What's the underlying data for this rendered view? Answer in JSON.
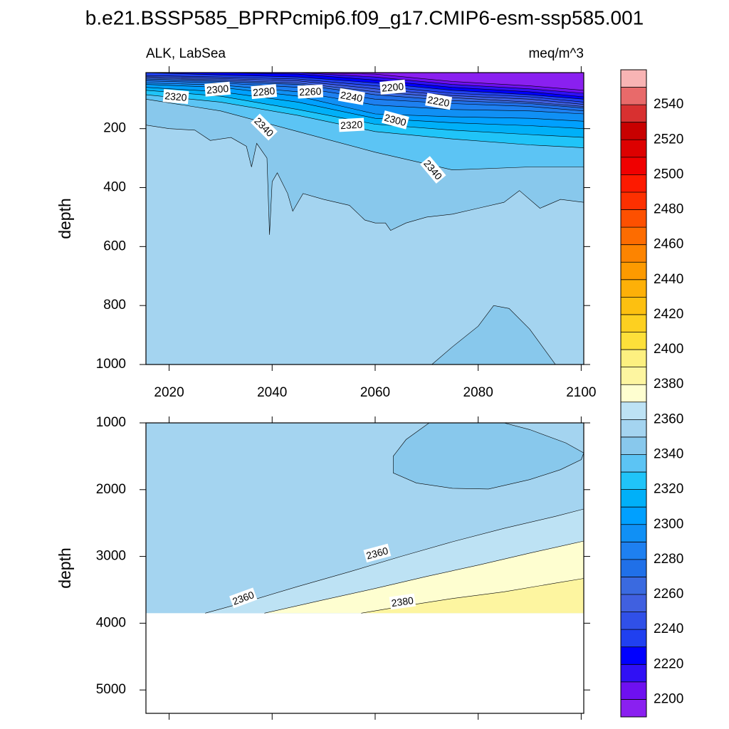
{
  "title": "b.e21.BSSP585_BPRPcmip6.f09_g17.CMIP6-esm-ssp585.001",
  "colorbar": {
    "lim": [
      2190,
      2560
    ],
    "levels": [
      2200,
      2210,
      2220,
      2230,
      2240,
      2250,
      2260,
      2270,
      2280,
      2290,
      2300,
      2310,
      2320,
      2330,
      2340,
      2350,
      2360,
      2370,
      2380,
      2390,
      2400,
      2410,
      2420,
      2430,
      2440,
      2450,
      2460,
      2470,
      2480,
      2490,
      2500,
      2510,
      2520,
      2530,
      2540,
      2550
    ],
    "colors": [
      "#8a20f0",
      "#6e10f0",
      "#3010f5",
      "#0000ff",
      "#2040f0",
      "#3050e8",
      "#4060e0",
      "#3a6ae0",
      "#2070e8",
      "#1e80f0",
      "#1090f5",
      "#00a0ff",
      "#00b0f8",
      "#20c4f8",
      "#5cc4f4",
      "#88c8ec",
      "#a4d4f0",
      "#bde2f4",
      "#fefed0",
      "#fdf5a0",
      "#fdf080",
      "#fde03a",
      "#fdd020",
      "#fdc010",
      "#fdb008",
      "#fd9a00",
      "#fd8400",
      "#fd6c00",
      "#fd5000",
      "#fd3000",
      "#fd1a00",
      "#f00000",
      "#dd0000",
      "#c80000",
      "#d83030",
      "#e86a6a",
      "#f8b4b4"
    ],
    "ticks": [
      2200,
      2220,
      2240,
      2260,
      2280,
      2300,
      2320,
      2340,
      2360,
      2380,
      2400,
      2420,
      2440,
      2460,
      2480,
      2500,
      2520,
      2540
    ]
  },
  "chart_data": [
    {
      "type": "contour",
      "subtitle_left": "ALK, LabSea",
      "subtitle_right": "meq/m^3",
      "y_label": "depth",
      "xlim": [
        2015.5,
        2100.5
      ],
      "xticks": [
        2020,
        2040,
        2060,
        2080,
        2100
      ],
      "show_xtick_labels": true,
      "ylim": [
        10,
        1000
      ],
      "yticks": [
        200,
        400,
        600,
        800,
        1000
      ],
      "background_level": 2350,
      "contours": [
        {
          "level": 2350,
          "fill": "surface",
          "x": [
            2015.5,
            2020,
            2025,
            2028,
            2032,
            2035,
            2036,
            2037,
            2039,
            2039.5,
            2040,
            2041,
            2043,
            2044,
            2046,
            2050,
            2055,
            2058,
            2060,
            2062,
            2063,
            2066,
            2070,
            2075,
            2080,
            2085,
            2088,
            2092,
            2096,
            2100.5
          ],
          "depth": [
            188,
            200,
            205,
            240,
            230,
            260,
            330,
            250,
            300,
            560,
            380,
            350,
            420,
            480,
            420,
            440,
            460,
            510,
            520,
            520,
            545,
            520,
            500,
            490,
            470,
            450,
            410,
            470,
            440,
            450
          ]
        },
        {
          "level": 2350,
          "fill": "inside",
          "x": [
            2071,
            2075,
            2080,
            2083,
            2086,
            2090,
            2095
          ],
          "depth": [
            1000,
            940,
            870,
            800,
            810,
            880,
            1000
          ]
        },
        {
          "level": 2340,
          "fill": "surface",
          "x": [
            2015.5,
            2030,
            2045,
            2060,
            2075,
            2090,
            2100.5
          ],
          "depth": [
            100,
            140,
            210,
            280,
            340,
            330,
            330
          ]
        },
        {
          "level": 2330,
          "fill": "surface",
          "x": [
            2015.5,
            2030,
            2045,
            2060,
            2075,
            2090,
            2100.5
          ],
          "depth": [
            85,
            110,
            155,
            210,
            235,
            255,
            265
          ]
        },
        {
          "level": 2320,
          "fill": "surface",
          "x": [
            2015.5,
            2030,
            2045,
            2060,
            2075,
            2090,
            2100.5
          ],
          "depth": [
            70,
            90,
            135,
            185,
            205,
            220,
            230
          ]
        },
        {
          "level": 2310,
          "fill": "surface",
          "x": [
            2015.5,
            2030,
            2045,
            2060,
            2075,
            2090,
            2100.5
          ],
          "depth": [
            60,
            75,
            110,
            165,
            180,
            190,
            200
          ]
        },
        {
          "level": 2300,
          "fill": "surface",
          "x": [
            2015.5,
            2030,
            2045,
            2060,
            2075,
            2090,
            2100.5
          ],
          "depth": [
            50,
            60,
            90,
            150,
            160,
            165,
            175
          ]
        },
        {
          "level": 2290,
          "fill": "surface",
          "x": [
            2015.5,
            2030,
            2045,
            2060,
            2075,
            2090,
            2100.5
          ],
          "depth": [
            45,
            52,
            75,
            120,
            135,
            140,
            150
          ]
        },
        {
          "level": 2280,
          "fill": "surface",
          "x": [
            2015.5,
            2030,
            2045,
            2060,
            2075,
            2090,
            2100.5
          ],
          "depth": [
            38,
            45,
            60,
            100,
            115,
            125,
            140
          ]
        },
        {
          "level": 2270,
          "fill": "surface",
          "x": [
            2015.5,
            2030,
            2045,
            2060,
            2075,
            2090,
            2100.5
          ],
          "depth": [
            32,
            40,
            50,
            85,
            105,
            115,
            130
          ]
        },
        {
          "level": 2260,
          "fill": "surface",
          "x": [
            2015.5,
            2030,
            2045,
            2060,
            2075,
            2090,
            2100.5
          ],
          "depth": [
            28,
            35,
            45,
            75,
            95,
            110,
            125
          ]
        },
        {
          "level": 2250,
          "fill": "surface",
          "x": [
            2015.5,
            2030,
            2045,
            2060,
            2075,
            2090,
            2100.5
          ],
          "depth": [
            24,
            30,
            38,
            65,
            88,
            100,
            118
          ]
        },
        {
          "level": 2240,
          "fill": "surface",
          "x": [
            2015.5,
            2030,
            2045,
            2060,
            2075,
            2090,
            2100.5
          ],
          "depth": [
            20,
            25,
            32,
            55,
            80,
            92,
            110
          ]
        },
        {
          "level": 2230,
          "fill": "surface",
          "x": [
            2015.5,
            2030,
            2045,
            2060,
            2075,
            2090,
            2100.5
          ],
          "depth": [
            10,
            18,
            25,
            45,
            70,
            85,
            100
          ]
        },
        {
          "level": 2220,
          "fill": "surface",
          "x": [
            2015.5,
            2030,
            2045,
            2060,
            2075,
            2090,
            2100.5
          ],
          "depth": [
            10,
            10,
            15,
            35,
            60,
            75,
            92
          ]
        },
        {
          "level": 2210,
          "fill": "surface",
          "x": [
            2015.5,
            2030,
            2045,
            2060,
            2075,
            2090,
            2100.5
          ],
          "depth": [
            10,
            10,
            10,
            25,
            50,
            65,
            80
          ]
        },
        {
          "level": 2200,
          "fill": "surface",
          "x": [
            2015.5,
            2030,
            2045,
            2060,
            2075,
            2090,
            2100.5
          ],
          "depth": [
            10,
            10,
            10,
            15,
            40,
            55,
            70
          ]
        }
      ],
      "labels": [
        {
          "level": 2320,
          "x": 2021.3,
          "depth": 92
        },
        {
          "level": 2300,
          "x": 2029.4,
          "depth": 67
        },
        {
          "level": 2280,
          "x": 2038.4,
          "depth": 75
        },
        {
          "level": 2260,
          "x": 2047.4,
          "depth": 75
        },
        {
          "level": 2240,
          "x": 2055.4,
          "depth": 92
        },
        {
          "level": 2200,
          "x": 2063.4,
          "depth": 60
        },
        {
          "level": 2220,
          "x": 2072.3,
          "depth": 108
        },
        {
          "level": 2340,
          "x": 2038.4,
          "depth": 195
        },
        {
          "level": 2320,
          "x": 2055.4,
          "depth": 188
        },
        {
          "level": 2300,
          "x": 2063.9,
          "depth": 171
        },
        {
          "level": 2340,
          "x": 2071.2,
          "depth": 340
        }
      ]
    },
    {
      "type": "contour",
      "y_label": "depth",
      "xlim": [
        2015.5,
        2100.5
      ],
      "xticks": [
        2020,
        2040,
        2060,
        2080,
        2100
      ],
      "show_xtick_labels": false,
      "ylim": [
        1000,
        5350
      ],
      "yticks": [
        1000,
        2000,
        3000,
        4000,
        5000
      ],
      "background_level": 2350,
      "data_depth_max": 3850,
      "contours": [
        {
          "level": 2360,
          "fill": "bottom",
          "x": [
            2027,
            2035,
            2045,
            2055,
            2065,
            2075,
            2085,
            2095,
            2100.5
          ],
          "depth": [
            3850,
            3680,
            3450,
            3230,
            3000,
            2780,
            2580,
            2400,
            2290
          ]
        },
        {
          "level": 2370,
          "fill": "bottom",
          "x": [
            2038.5,
            2050,
            2060,
            2070,
            2080,
            2090,
            2100.5
          ],
          "depth": [
            3850,
            3650,
            3480,
            3300,
            3130,
            2950,
            2770
          ]
        },
        {
          "level": 2380,
          "fill": "bottom",
          "x": [
            2057.3,
            2065,
            2075,
            2085,
            2095,
            2100.5
          ],
          "depth": [
            3850,
            3750,
            3630,
            3530,
            3400,
            3330
          ]
        },
        {
          "level": 2350,
          "fill": "inside",
          "x": [
            2070.5,
            2066,
            2063.5,
            2063.5,
            2068,
            2075,
            2082,
            2090,
            2096,
            2100,
            2100.5,
            2097,
            2090,
            2085
          ],
          "depth": [
            1000,
            1250,
            1500,
            1750,
            1900,
            1980,
            1990,
            1850,
            1700,
            1550,
            1450,
            1300,
            1100,
            1000
          ]
        }
      ],
      "labels": [
        {
          "level": 2360,
          "x": 2060.4,
          "depth": 2953
        },
        {
          "level": 2360,
          "x": 2034.4,
          "depth": 3625
        },
        {
          "level": 2380,
          "x": 2065.3,
          "depth": 3680
        }
      ]
    }
  ]
}
